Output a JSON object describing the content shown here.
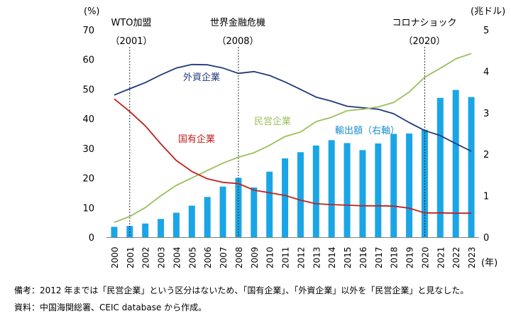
{
  "chart_data": {
    "type": "bar+line",
    "x_unit_label": "(年)",
    "left_axis": {
      "unit_label": "(%)",
      "ylim": [
        0,
        70
      ],
      "ticks": [
        0,
        10,
        20,
        30,
        40,
        50,
        60,
        70
      ]
    },
    "right_axis": {
      "unit_label": "(兆ドル)",
      "ylim": [
        0,
        5
      ],
      "ticks": [
        0,
        1,
        2,
        3,
        4,
        5
      ]
    },
    "categories": [
      "2000",
      "2001",
      "2002",
      "2003",
      "2004",
      "2005",
      "2006",
      "2007",
      "2008",
      "2009",
      "2010",
      "2011",
      "2012",
      "2013",
      "2014",
      "2015",
      "2016",
      "2017",
      "2018",
      "2019",
      "2020",
      "2021",
      "2022",
      "2023"
    ],
    "bars": {
      "name": "輸出額（右軸）",
      "axis": "right",
      "color": "#1aa6e6",
      "values": [
        0.25,
        0.27,
        0.33,
        0.44,
        0.59,
        0.76,
        0.97,
        1.22,
        1.43,
        1.2,
        1.58,
        1.9,
        2.05,
        2.21,
        2.34,
        2.27,
        2.1,
        2.26,
        2.49,
        2.5,
        2.59,
        3.36,
        3.55,
        3.38
      ]
    },
    "series": [
      {
        "name": "外資企業",
        "axis": "left",
        "color": "#1f3a7a",
        "values": [
          48.0,
          50.1,
          52.2,
          54.8,
          57.1,
          58.3,
          58.2,
          57.1,
          55.3,
          55.9,
          54.6,
          52.4,
          49.9,
          47.3,
          45.9,
          44.2,
          43.7,
          43.2,
          41.7,
          38.7,
          36.0,
          34.3,
          31.6,
          29.0
        ]
      },
      {
        "name": "民営企業",
        "axis": "left",
        "color": "#9cbf5c",
        "values": [
          5.0,
          7.0,
          10.0,
          14.0,
          17.5,
          20.0,
          22.5,
          25.0,
          27.0,
          28.5,
          31.0,
          34.0,
          35.5,
          39.0,
          40.5,
          42.7,
          43.2,
          44.0,
          45.5,
          49.0,
          54.0,
          57.0,
          60.2,
          62.0
        ]
      },
      {
        "name": "国有企業",
        "axis": "left",
        "color": "#c0201e",
        "values": [
          46.7,
          42.4,
          37.6,
          31.5,
          25.9,
          22.2,
          19.7,
          18.5,
          18.1,
          15.9,
          15.0,
          14.1,
          12.5,
          11.3,
          11.0,
          10.8,
          10.6,
          10.6,
          10.5,
          9.8,
          8.2,
          8.2,
          8.1,
          8.1
        ]
      }
    ],
    "events": [
      {
        "title": "WTO加盟",
        "year_label": "（2001）",
        "year": "2001"
      },
      {
        "title": "世界金融危機",
        "year_label": "（2008）",
        "year": "2008"
      },
      {
        "title": "コロナショック",
        "year_label": "（2020）",
        "year": "2020"
      }
    ]
  },
  "notes": {
    "note1": "備考：2012 年までは「民営企業」という区分はないため、「国有企業」、「外資企業」以外を「民営企業」と見なした。",
    "note2": "資料：中国海関総署、CEIC database から作成。"
  }
}
